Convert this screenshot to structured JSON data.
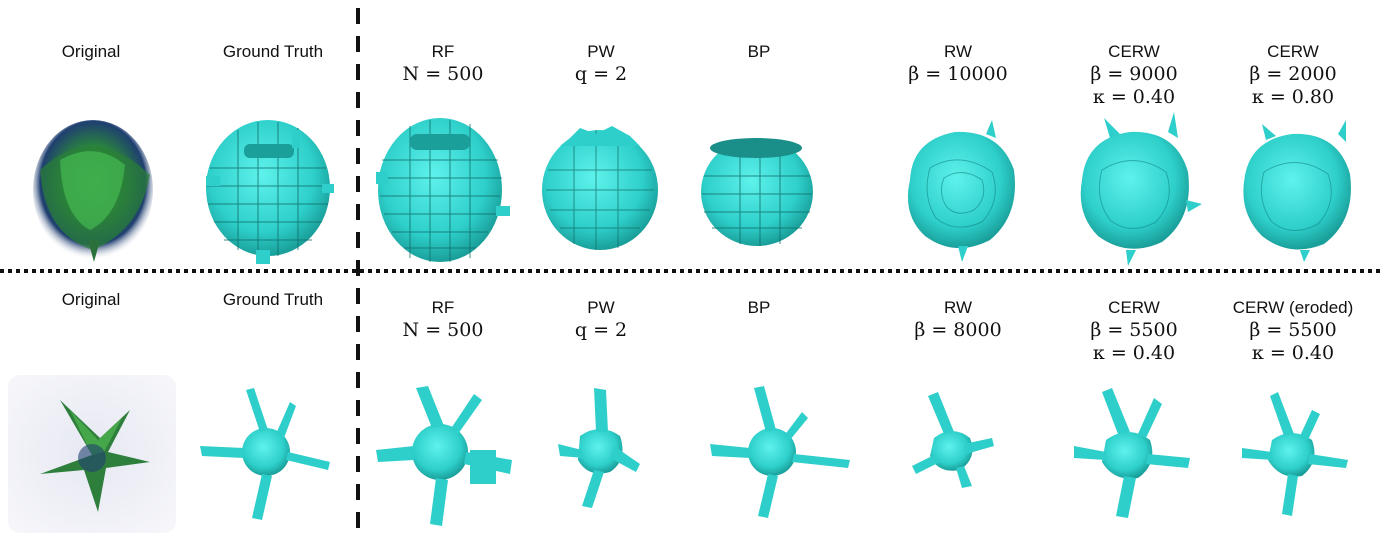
{
  "figure": {
    "rows": [
      {
        "columns": [
          {
            "name": "Original",
            "param1": "",
            "param2": "",
            "thumb": "original-cell-volume"
          },
          {
            "name": "Ground Truth",
            "param1": "",
            "param2": "",
            "thumb": "voxel-sphere"
          },
          {
            "name": "RF",
            "param1": "N = 500",
            "param2": "",
            "thumb": "voxel-sphere"
          },
          {
            "name": "PW",
            "param1": "q = 2",
            "param2": "",
            "thumb": "voxel-sphere"
          },
          {
            "name": "BP",
            "param1": "",
            "param2": "",
            "thumb": "voxel-sphere"
          },
          {
            "name": "RW",
            "param1": "β = 10000",
            "param2": "",
            "thumb": "smooth-sphere"
          },
          {
            "name": "CERW",
            "param1": "β = 9000",
            "param2": "κ = 0.40",
            "thumb": "smooth-sphere"
          },
          {
            "name": "CERW",
            "param1": "β = 2000",
            "param2": "κ = 0.80",
            "thumb": "smooth-sphere"
          }
        ]
      },
      {
        "columns": [
          {
            "name": "Original",
            "param1": "",
            "param2": "",
            "thumb": "original-cell-volume"
          },
          {
            "name": "Ground Truth",
            "param1": "",
            "param2": "",
            "thumb": "branched-cell"
          },
          {
            "name": "RF",
            "param1": "N = 500",
            "param2": "",
            "thumb": "branched-cell"
          },
          {
            "name": "PW",
            "param1": "q = 2",
            "param2": "",
            "thumb": "branched-cell"
          },
          {
            "name": "BP",
            "param1": "",
            "param2": "",
            "thumb": "branched-cell"
          },
          {
            "name": "RW",
            "param1": "β = 8000",
            "param2": "",
            "thumb": "branched-cell"
          },
          {
            "name": "CERW",
            "param1": "β = 5500",
            "param2": "κ = 0.40",
            "thumb": "branched-cell"
          },
          {
            "name": "CERW (eroded)",
            "param1": "β = 5500",
            "param2": "κ = 0.40",
            "thumb": "branched-cell"
          }
        ]
      }
    ],
    "colors": {
      "segmentation": "#33d6d0",
      "segmentation_dark": "#1a8f8a",
      "original_green": "#2f9a3a",
      "original_blue": "#1f3f70",
      "divider": "#111111"
    }
  }
}
